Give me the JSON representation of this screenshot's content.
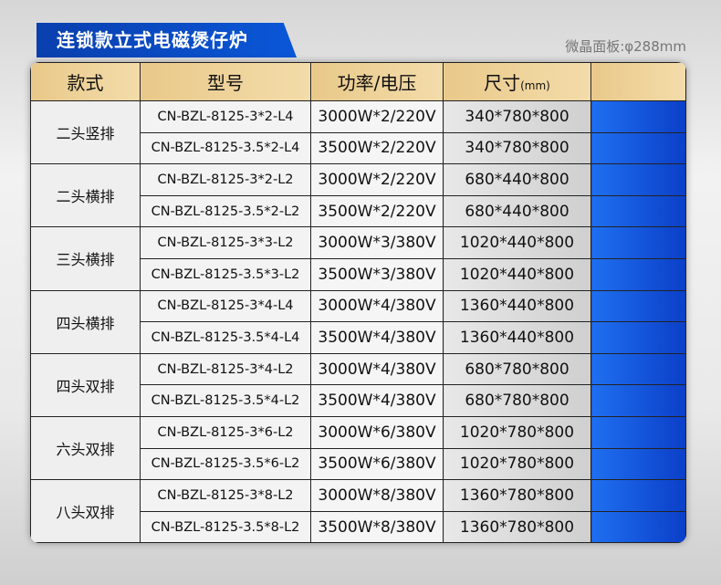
{
  "title": "连锁款立式电磁煲仔炉",
  "subtitle": "微晶面板:φ288mm",
  "headers": {
    "style": "款式",
    "model": "型号",
    "power": "功率/电压",
    "size": "尺寸",
    "size_unit": "(mm)"
  },
  "groups": [
    {
      "style": "二头竖排",
      "rows": [
        [
          "CN-BZL-8125-3*2-L4",
          "3000W*2/220V",
          "340*780*800"
        ],
        [
          "CN-BZL-8125-3.5*2-L4",
          "3500W*2/220V",
          "340*780*800"
        ]
      ]
    },
    {
      "style": "二头横排",
      "rows": [
        [
          "CN-BZL-8125-3*2-L2",
          "3000W*2/220V",
          "680*440*800"
        ],
        [
          "CN-BZL-8125-3.5*2-L2",
          "3500W*2/220V",
          "680*440*800"
        ]
      ]
    },
    {
      "style": "三头横排",
      "rows": [
        [
          "CN-BZL-8125-3*3-L2",
          "3000W*3/380V",
          "1020*440*800"
        ],
        [
          "CN-BZL-8125-3.5*3-L2",
          "3500W*3/380V",
          "1020*440*800"
        ]
      ]
    },
    {
      "style": "四头横排",
      "rows": [
        [
          "CN-BZL-8125-3*4-L4",
          "3000W*4/380V",
          "1360*440*800"
        ],
        [
          "CN-BZL-8125-3.5*4-L4",
          "3500W*4/380V",
          "1360*440*800"
        ]
      ]
    },
    {
      "style": "四头双排",
      "rows": [
        [
          "CN-BZL-8125-3*4-L2",
          "3000W*4/380V",
          "680*780*800"
        ],
        [
          "CN-BZL-8125-3.5*4-L2",
          "3500W*4/380V",
          "680*780*800"
        ]
      ]
    },
    {
      "style": "六头双排",
      "rows": [
        [
          "CN-BZL-8125-3*6-L2",
          "3000W*6/380V",
          "1020*780*800"
        ],
        [
          "CN-BZL-8125-3.5*6-L2",
          "3500W*6/380V",
          "1020*780*800"
        ]
      ]
    },
    {
      "style": "八头双排",
      "rows": [
        [
          "CN-BZL-8125-3*8-L2",
          "3000W*8/380V",
          "1360*780*800"
        ],
        [
          "CN-BZL-8125-3.5*8-L2",
          "3500W*8/380V",
          "1360*780*800"
        ]
      ]
    }
  ]
}
